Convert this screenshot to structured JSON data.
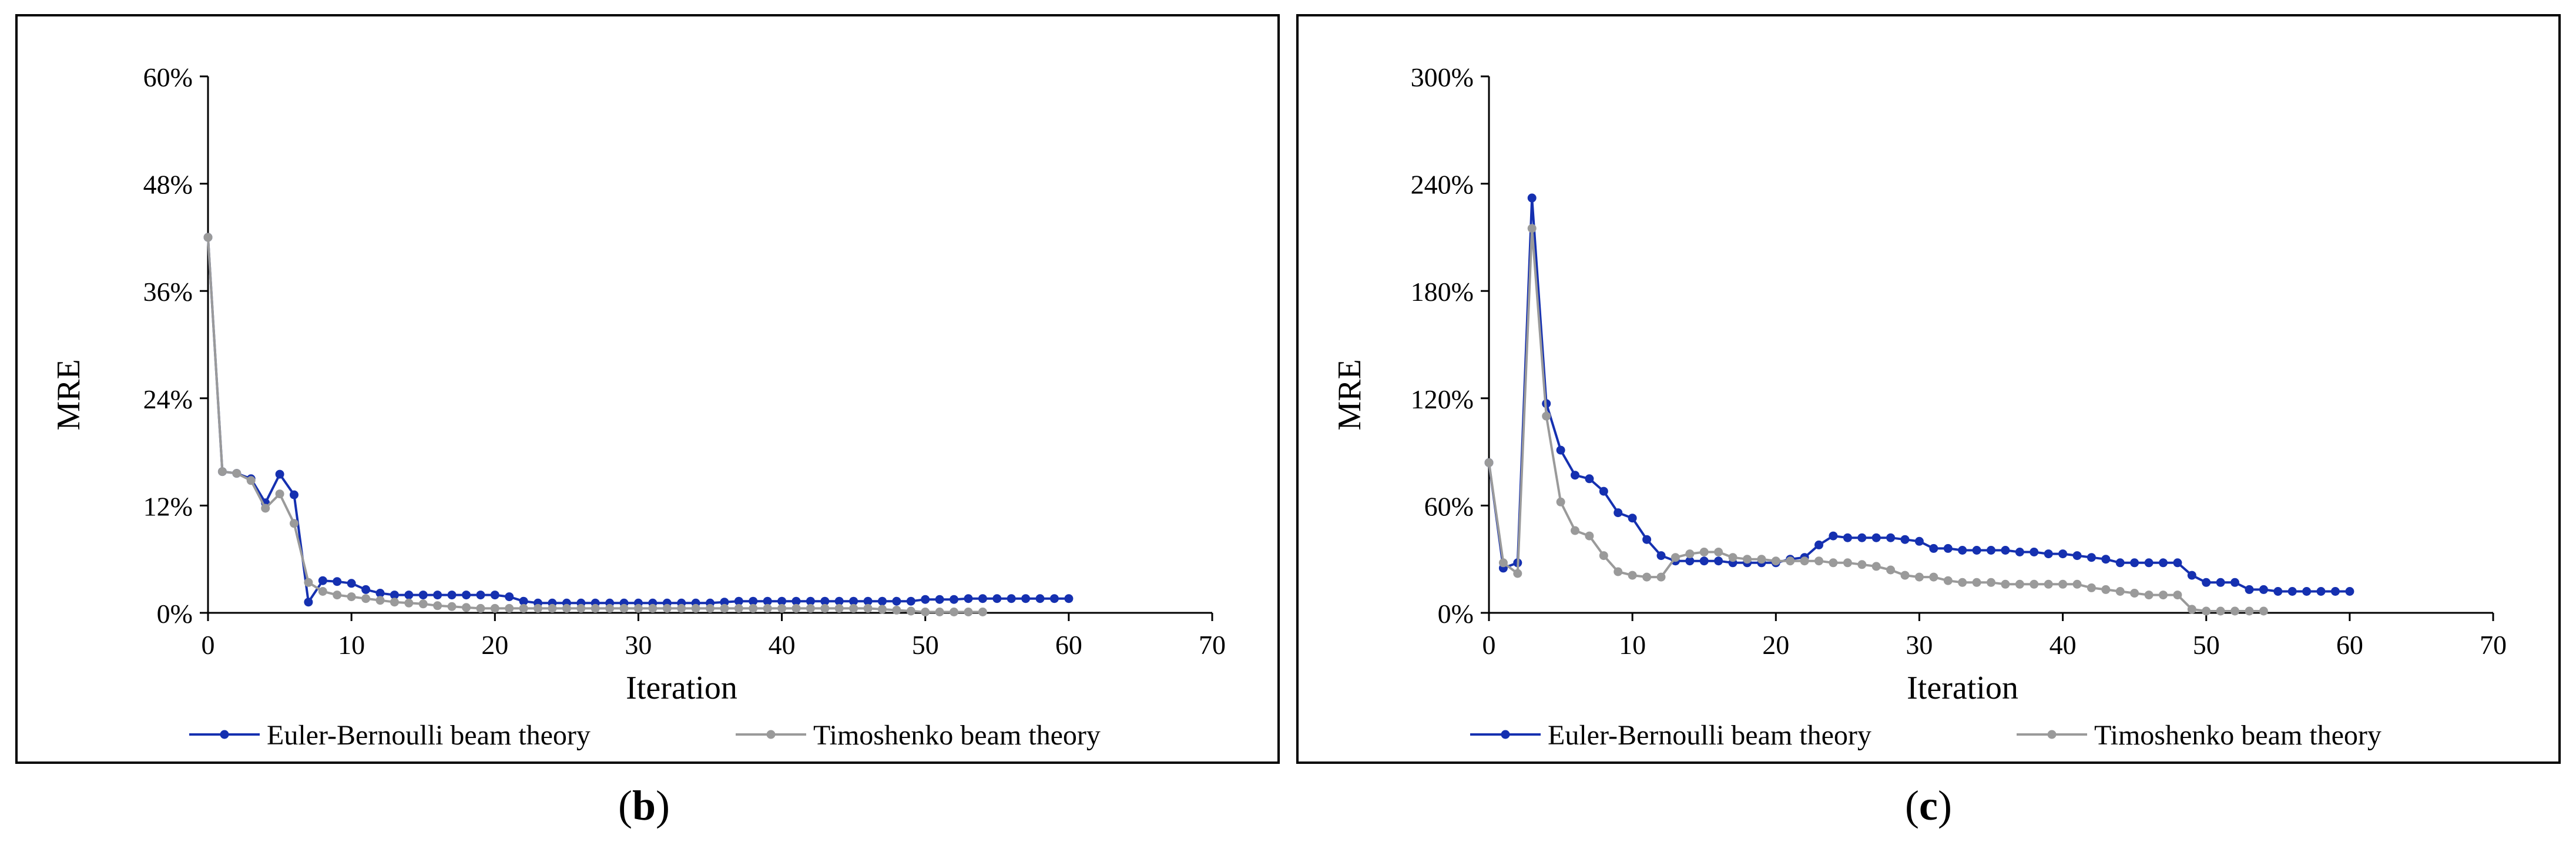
{
  "colors": {
    "euler": "#1530b0",
    "timo": "#9a9a9a",
    "frame": "#000000"
  },
  "chart_data": [
    {
      "panel_label": "b",
      "type": "line",
      "xlabel": "Iteration",
      "ylabel": "MRE",
      "xlim": [
        0,
        70
      ],
      "ylim": [
        0,
        60
      ],
      "xticks": [
        "0",
        "10",
        "20",
        "30",
        "40",
        "50",
        "60",
        "70"
      ],
      "yticks": [
        "0%",
        "12%",
        "24%",
        "36%",
        "48%",
        "60%"
      ],
      "series": [
        {
          "name": "Euler-Bernoulli beam theory",
          "key": "euler",
          "values": [
            42,
            15.8,
            15.6,
            15.0,
            12.3,
            15.5,
            13.2,
            1.2,
            3.6,
            3.5,
            3.3,
            2.6,
            2.2,
            2.0,
            2.0,
            2.0,
            2.0,
            2.0,
            2.0,
            2.0,
            2.0,
            1.8,
            1.3,
            1.1,
            1.1,
            1.1,
            1.1,
            1.1,
            1.1,
            1.1,
            1.1,
            1.1,
            1.1,
            1.1,
            1.1,
            1.1,
            1.2,
            1.3,
            1.3,
            1.3,
            1.3,
            1.3,
            1.3,
            1.3,
            1.3,
            1.3,
            1.3,
            1.3,
            1.3,
            1.3,
            1.5,
            1.5,
            1.5,
            1.6,
            1.6,
            1.6,
            1.6,
            1.6,
            1.6,
            1.6,
            1.6
          ]
        },
        {
          "name": "Timoshenko beam theory",
          "key": "timo",
          "values": [
            42,
            15.8,
            15.6,
            14.8,
            11.7,
            13.3,
            10.0,
            3.4,
            2.4,
            2.0,
            1.8,
            1.6,
            1.4,
            1.2,
            1.1,
            1.0,
            0.8,
            0.7,
            0.6,
            0.5,
            0.5,
            0.5,
            0.5,
            0.5,
            0.5,
            0.5,
            0.5,
            0.5,
            0.5,
            0.5,
            0.5,
            0.5,
            0.5,
            0.5,
            0.5,
            0.5,
            0.5,
            0.5,
            0.5,
            0.5,
            0.5,
            0.5,
            0.5,
            0.5,
            0.5,
            0.5,
            0.5,
            0.4,
            0.3,
            0.2,
            0.1,
            0.1,
            0.1,
            0.1,
            0.1
          ]
        }
      ]
    },
    {
      "panel_label": "c",
      "type": "line",
      "xlabel": "Iteration",
      "ylabel": "MRE",
      "xlim": [
        0,
        70
      ],
      "ylim": [
        0,
        300
      ],
      "xticks": [
        "0",
        "10",
        "20",
        "30",
        "40",
        "50",
        "60",
        "70"
      ],
      "yticks": [
        "0%",
        "60%",
        "120%",
        "180%",
        "240%",
        "300%"
      ],
      "series": [
        {
          "name": "Euler-Bernoulli beam theory",
          "key": "euler",
          "values": [
            84,
            25,
            28,
            232,
            117,
            91,
            77,
            75,
            68,
            56,
            53,
            41,
            32,
            29,
            29,
            29,
            29,
            28,
            28,
            28,
            28,
            30,
            31,
            38,
            43,
            42,
            42,
            42,
            42,
            41,
            40,
            36,
            36,
            35,
            35,
            35,
            35,
            34,
            34,
            33,
            33,
            32,
            31,
            30,
            28,
            28,
            28,
            28,
            28,
            21,
            17,
            17,
            17,
            13,
            13,
            12,
            12,
            12,
            12,
            12,
            12
          ]
        },
        {
          "name": "Timoshenko beam theory",
          "key": "timo",
          "values": [
            84,
            28,
            22,
            215,
            110,
            62,
            46,
            43,
            32,
            23,
            21,
            20,
            20,
            31,
            33,
            34,
            34,
            31,
            30,
            30,
            29,
            29,
            29,
            29,
            28,
            28,
            27,
            26,
            24,
            21,
            20,
            20,
            18,
            17,
            17,
            17,
            16,
            16,
            16,
            16,
            16,
            16,
            14,
            13,
            12,
            11,
            10,
            10,
            10,
            2,
            1,
            1,
            1,
            1,
            1
          ]
        }
      ]
    }
  ]
}
